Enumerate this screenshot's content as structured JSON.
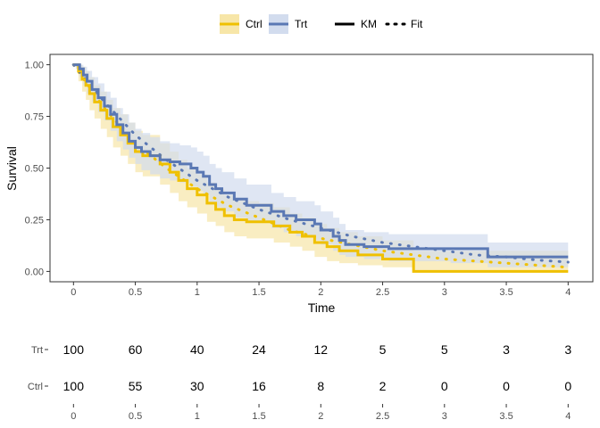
{
  "chart_data": {
    "type": "line",
    "title": "",
    "xlabel": "Time",
    "ylabel": "Survival",
    "xlim": [
      -0.19,
      4.2
    ],
    "ylim": [
      -0.05,
      1.05
    ],
    "xticks": [
      0,
      0.5,
      1,
      1.5,
      2,
      2.5,
      3,
      3.5,
      4
    ],
    "xtick_labels": [
      "0",
      "0.5",
      "1",
      "1.5",
      "2",
      "2.5",
      "3",
      "3.5",
      "4"
    ],
    "yticks": [
      0,
      0.25,
      0.5,
      0.75,
      1
    ],
    "ytick_labels": [
      "0.00",
      "0.25",
      "0.50",
      "0.75",
      "1.00"
    ],
    "legend": {
      "placement": "top",
      "groups": [
        {
          "name": "Ctrl",
          "color": "#EFC000"
        },
        {
          "name": "Trt",
          "color": "#5A78B4"
        }
      ],
      "line_types": [
        {
          "name": "KM",
          "style": "solid"
        },
        {
          "name": "Fit",
          "style": "dotted"
        }
      ]
    },
    "series": [
      {
        "name": "Ctrl",
        "color": "#EFC000",
        "band_color": "#F7E6A8",
        "km": {
          "x": [
            0,
            0.04,
            0.07,
            0.1,
            0.13,
            0.17,
            0.22,
            0.27,
            0.32,
            0.38,
            0.44,
            0.5,
            0.56,
            0.63,
            0.7,
            0.78,
            0.85,
            0.92,
            1.0,
            1.08,
            1.15,
            1.22,
            1.3,
            1.4,
            1.5,
            1.62,
            1.75,
            1.85,
            1.95,
            2.05,
            2.15,
            2.3,
            2.5,
            2.75,
            4.0
          ],
          "y": [
            1.0,
            0.97,
            0.93,
            0.9,
            0.86,
            0.82,
            0.78,
            0.74,
            0.7,
            0.66,
            0.62,
            0.58,
            0.56,
            0.56,
            0.52,
            0.48,
            0.44,
            0.4,
            0.37,
            0.33,
            0.3,
            0.27,
            0.25,
            0.24,
            0.24,
            0.22,
            0.19,
            0.17,
            0.14,
            0.12,
            0.1,
            0.08,
            0.06,
            0.0,
            0.0
          ],
          "lower": [
            1.0,
            0.92,
            0.87,
            0.83,
            0.78,
            0.74,
            0.69,
            0.65,
            0.6,
            0.56,
            0.52,
            0.48,
            0.46,
            0.46,
            0.42,
            0.38,
            0.34,
            0.31,
            0.28,
            0.24,
            0.22,
            0.19,
            0.17,
            0.16,
            0.16,
            0.14,
            0.12,
            0.1,
            0.07,
            0.05,
            0.04,
            0.03,
            0.02,
            0.0,
            0.0
          ],
          "upper": [
            1.0,
            1.0,
            0.99,
            0.97,
            0.94,
            0.9,
            0.87,
            0.83,
            0.79,
            0.76,
            0.72,
            0.68,
            0.66,
            0.66,
            0.62,
            0.58,
            0.54,
            0.5,
            0.47,
            0.43,
            0.4,
            0.37,
            0.35,
            0.34,
            0.33,
            0.31,
            0.28,
            0.26,
            0.23,
            0.21,
            0.19,
            0.17,
            0.15,
            0.1,
            0.1
          ]
        },
        "fit": {
          "x": [
            0,
            0.25,
            0.5,
            0.75,
            1.0,
            1.25,
            1.5,
            1.75,
            2.0,
            2.25,
            2.5,
            2.75,
            3.0,
            3.25,
            3.5,
            3.75,
            4.0
          ],
          "y": [
            1.0,
            0.79,
            0.62,
            0.5,
            0.4,
            0.32,
            0.26,
            0.2,
            0.16,
            0.13,
            0.1,
            0.08,
            0.06,
            0.05,
            0.04,
            0.03,
            0.02
          ]
        }
      },
      {
        "name": "Trt",
        "color": "#5A78B4",
        "band_color": "#D2DCEE",
        "km": {
          "x": [
            0,
            0.02,
            0.05,
            0.08,
            0.11,
            0.15,
            0.2,
            0.25,
            0.3,
            0.35,
            0.4,
            0.45,
            0.5,
            0.55,
            0.62,
            0.7,
            0.78,
            0.86,
            0.95,
            1.0,
            1.05,
            1.1,
            1.15,
            1.2,
            1.3,
            1.4,
            1.5,
            1.6,
            1.7,
            1.8,
            1.9,
            1.95,
            2.0,
            2.1,
            2.15,
            2.2,
            2.35,
            2.45,
            2.55,
            2.75,
            3.05,
            3.35,
            4.0
          ],
          "y": [
            1.0,
            1.0,
            0.98,
            0.95,
            0.92,
            0.88,
            0.84,
            0.8,
            0.76,
            0.71,
            0.67,
            0.63,
            0.6,
            0.58,
            0.56,
            0.54,
            0.53,
            0.52,
            0.5,
            0.48,
            0.46,
            0.42,
            0.4,
            0.38,
            0.35,
            0.32,
            0.32,
            0.29,
            0.27,
            0.25,
            0.25,
            0.23,
            0.2,
            0.17,
            0.15,
            0.13,
            0.12,
            0.12,
            0.11,
            0.11,
            0.11,
            0.07,
            0.07
          ],
          "lower": [
            1.0,
            0.98,
            0.94,
            0.9,
            0.86,
            0.82,
            0.77,
            0.73,
            0.68,
            0.63,
            0.59,
            0.55,
            0.52,
            0.49,
            0.47,
            0.45,
            0.44,
            0.43,
            0.41,
            0.39,
            0.37,
            0.33,
            0.31,
            0.29,
            0.26,
            0.24,
            0.24,
            0.21,
            0.19,
            0.17,
            0.17,
            0.15,
            0.13,
            0.1,
            0.08,
            0.07,
            0.06,
            0.06,
            0.05,
            0.05,
            0.04,
            0.02,
            0.02
          ],
          "upper": [
            1.0,
            1.0,
            1.0,
            0.99,
            0.97,
            0.94,
            0.91,
            0.87,
            0.84,
            0.79,
            0.76,
            0.72,
            0.69,
            0.67,
            0.65,
            0.63,
            0.62,
            0.61,
            0.6,
            0.58,
            0.56,
            0.52,
            0.5,
            0.48,
            0.45,
            0.42,
            0.42,
            0.38,
            0.36,
            0.34,
            0.34,
            0.32,
            0.29,
            0.26,
            0.23,
            0.2,
            0.19,
            0.19,
            0.18,
            0.18,
            0.18,
            0.14,
            0.14
          ]
        },
        "fit": {
          "x": [
            0,
            0.25,
            0.5,
            0.75,
            1.0,
            1.25,
            1.5,
            1.75,
            2.0,
            2.25,
            2.5,
            2.75,
            3.0,
            3.25,
            3.5,
            3.75,
            4.0
          ],
          "y": [
            1.0,
            0.82,
            0.66,
            0.54,
            0.44,
            0.36,
            0.3,
            0.25,
            0.21,
            0.17,
            0.14,
            0.12,
            0.1,
            0.08,
            0.07,
            0.055,
            0.045
          ]
        }
      }
    ],
    "risk_table": {
      "times": [
        0,
        0.5,
        1,
        1.5,
        2,
        2.5,
        3,
        3.5,
        4
      ],
      "time_labels": [
        "0",
        "0.5",
        "1",
        "1.5",
        "2",
        "2.5",
        "3",
        "3.5",
        "4"
      ],
      "rows": [
        {
          "label": "Trt",
          "values": [
            "100",
            "60",
            "40",
            "24",
            "12",
            "5",
            "5",
            "3",
            "3"
          ]
        },
        {
          "label": "Ctrl",
          "values": [
            "100",
            "55",
            "30",
            "16",
            "8",
            "2",
            "0",
            "0",
            "0"
          ]
        }
      ]
    }
  }
}
